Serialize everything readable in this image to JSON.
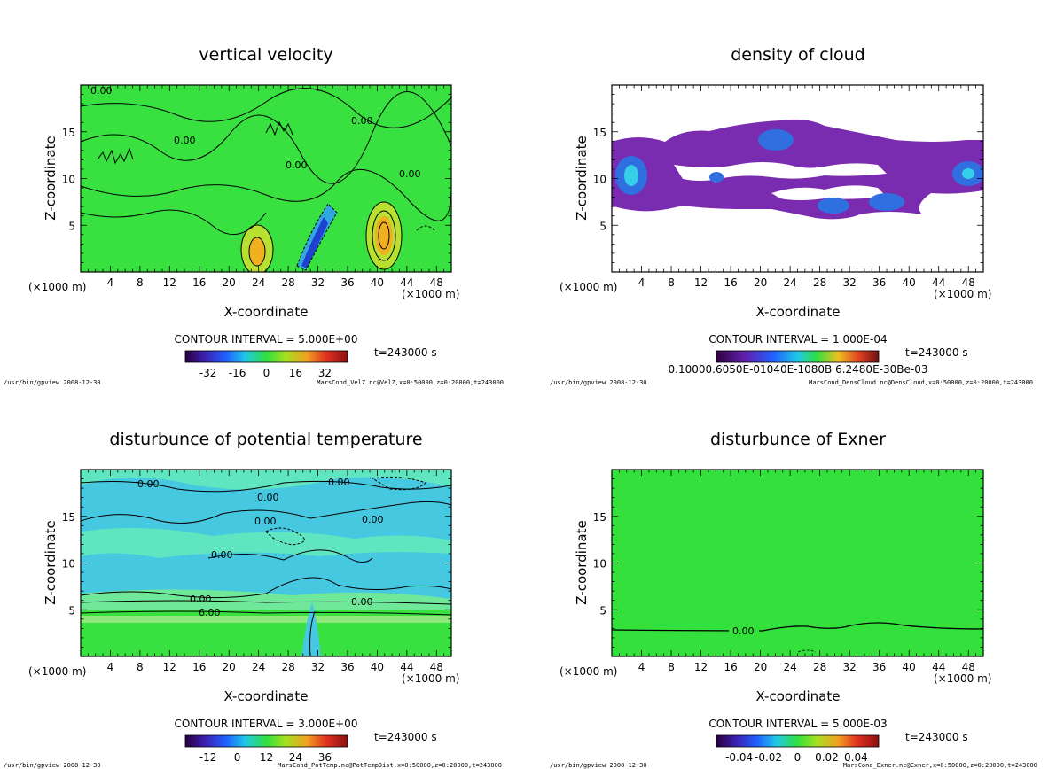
{
  "colors": {
    "green": "#33e03c",
    "cloud_purple": "#7a2cb0",
    "cloud_blue": "#2f6fe0",
    "cyan": "#35d0e8",
    "contour": "#000000"
  },
  "chart_data": [
    {
      "id": "velz",
      "type": "heatmap",
      "title": "vertical velocity",
      "xlabel": "X-coordinate",
      "ylabel": "Z-coordinate",
      "x_unit_left": "(×1000 m)",
      "x_unit_right": "(×1000 m)",
      "xlim": [
        0,
        50
      ],
      "ylim": [
        0,
        20
      ],
      "xticks": [
        4,
        8,
        12,
        16,
        20,
        24,
        28,
        32,
        36,
        40,
        44,
        48
      ],
      "yticks": [
        5,
        10,
        15
      ],
      "contour_interval": "CONTOUR INTERVAL = 5.000E+00",
      "colorbar_ticks": [
        "-32",
        "-16",
        "0",
        "16",
        "32"
      ],
      "time_label": "t=243000 s",
      "footer_left": "/usr/bin/gpview  2008-12-30",
      "footer_right": "MarsCond_VelZ.nc@VelZ,x=0:50000,z=0:20000,t=243000",
      "contour_labels": [
        "0.00",
        "0.00",
        "0.00",
        "0.00",
        "0.00"
      ]
    },
    {
      "id": "cloud",
      "type": "heatmap",
      "title": "density of cloud",
      "xlabel": "X-coordinate",
      "ylabel": "Z-coordinate",
      "x_unit_left": "(×1000 m)",
      "x_unit_right": "(×1000 m)",
      "xlim": [
        0,
        50
      ],
      "ylim": [
        0,
        20
      ],
      "xticks": [
        4,
        8,
        12,
        16,
        20,
        24,
        28,
        32,
        36,
        40,
        44,
        48
      ],
      "yticks": [
        5,
        10,
        15
      ],
      "contour_interval": "CONTOUR INTERVAL = 1.000E-04",
      "colorbar_ticks": [
        "0.10000.6050E-01040E-1080B 6.2480E-30Be-03"
      ],
      "time_label": "t=243000 s",
      "footer_left": "/usr/bin/gpview  2008-12-30",
      "footer_right": "MarsCond_DensCloud.nc@DensCloud,x=0:50000,z=0:20000,t=243000",
      "contour_labels": []
    },
    {
      "id": "pottemp",
      "type": "heatmap",
      "title": "disturbunce of potential temperature",
      "xlabel": "X-coordinate",
      "ylabel": "Z-coordinate",
      "x_unit_left": "(×1000 m)",
      "x_unit_right": "(×1000 m)",
      "xlim": [
        0,
        50
      ],
      "ylim": [
        0,
        20
      ],
      "xticks": [
        4,
        8,
        12,
        16,
        20,
        24,
        28,
        32,
        36,
        40,
        44,
        48
      ],
      "yticks": [
        5,
        10,
        15
      ],
      "contour_interval": "CONTOUR INTERVAL = 3.000E+00",
      "colorbar_ticks": [
        "-12",
        "0",
        "12",
        "24",
        "36"
      ],
      "time_label": "t=243000 s",
      "footer_left": "/usr/bin/gpview  2008-12-30",
      "footer_right": "MarsCond_PotTemp.nc@PotTempDist,x=0:50000,z=0:20000,t=243000",
      "contour_labels": [
        "0.00",
        "0.00",
        "0.00",
        "0.00",
        "0.00",
        "0.00",
        "0.00",
        "0.00",
        "6.00"
      ]
    },
    {
      "id": "exner",
      "type": "heatmap",
      "title": "disturbunce of Exner",
      "xlabel": "X-coordinate",
      "ylabel": "Z-coordinate",
      "x_unit_left": "(×1000 m)",
      "x_unit_right": "(×1000 m)",
      "xlim": [
        0,
        50
      ],
      "ylim": [
        0,
        20
      ],
      "xticks": [
        4,
        8,
        12,
        16,
        20,
        24,
        28,
        32,
        36,
        40,
        44,
        48
      ],
      "yticks": [
        5,
        10,
        15
      ],
      "contour_interval": "CONTOUR INTERVAL = 5.000E-03",
      "colorbar_ticks": [
        "-0.04",
        "-0.02",
        "0",
        "0.02",
        "0.04"
      ],
      "time_label": "t=243000 s",
      "footer_left": "/usr/bin/gpview  2008-12-30",
      "footer_right": "MarsCond_Exner.nc@Exner,x=0:50000,z=0:20000,t=243000",
      "contour_labels": [
        "0.00"
      ]
    }
  ]
}
